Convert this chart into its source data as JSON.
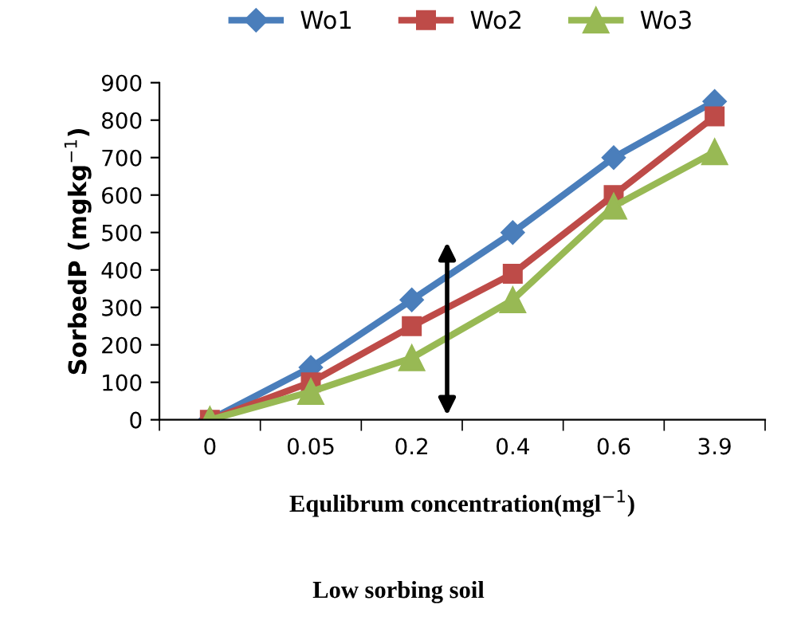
{
  "chart_data": {
    "type": "line",
    "xlabel": "Equlibrum concentration(mgl$^{−1}$)",
    "ylabel": "SorbedP (mgkg$^{−1}$)",
    "annotations": [
      "Low sorbing soil"
    ],
    "categories": [
      "0",
      "0.05",
      "0.2",
      "0.4",
      "0.6",
      "3.9"
    ],
    "series": [
      {
        "name": "Wo1",
        "color": "#4a7ebb",
        "marker": "diamond",
        "values": [
          0,
          140,
          320,
          500,
          700,
          850
        ]
      },
      {
        "name": "Wo2",
        "color": "#be4b48",
        "marker": "square",
        "values": [
          0,
          100,
          250,
          390,
          600,
          810
        ]
      },
      {
        "name": "Wo3",
        "color": "#98b954",
        "marker": "triangle",
        "values": [
          0,
          75,
          165,
          320,
          570,
          715
        ]
      }
    ],
    "ylim": [
      0,
      900
    ],
    "yticks": [
      0,
      100,
      200,
      300,
      400,
      500,
      600,
      700,
      800,
      900
    ],
    "grid": false,
    "legend": "top"
  }
}
